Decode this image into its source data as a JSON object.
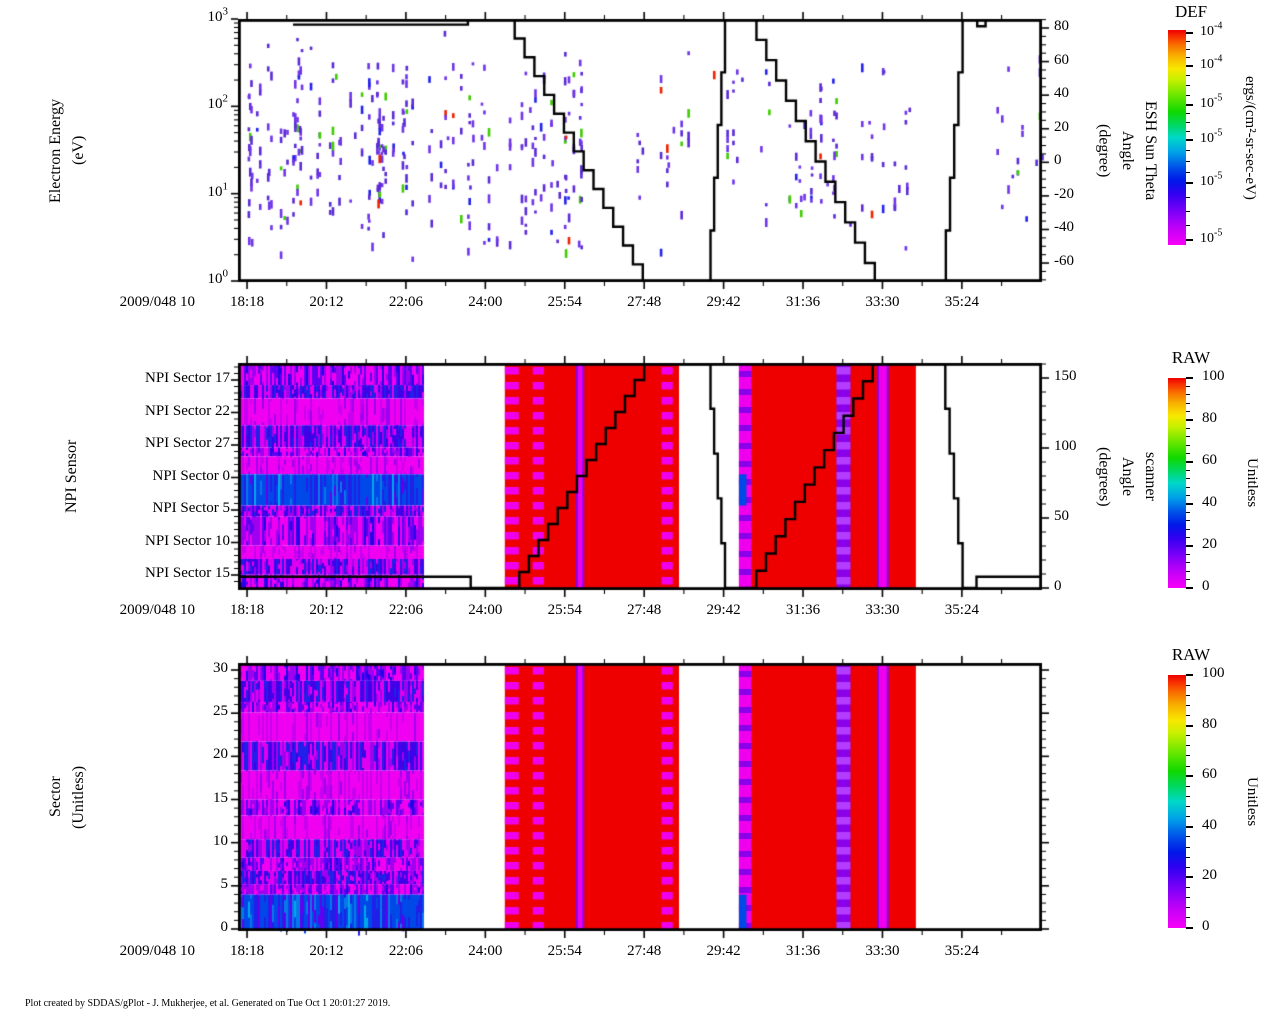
{
  "meta": {
    "footer": "Plot created by SDDAS/gPlot - J. Mukherjee, et al.  Generated on Tue Oct 1 20:01:27 2019."
  },
  "x_axis": {
    "date_label": "2009/048 10",
    "tick_labels": [
      "18:18",
      "20:12",
      "22:06",
      "24:00",
      "25:54",
      "27:48",
      "29:42",
      "31:36",
      "33:30",
      "35:24"
    ],
    "tick_minutes": [
      1098,
      1212,
      1326,
      1440,
      1554,
      1668,
      1782,
      1896,
      2010,
      2124
    ],
    "minor_extra_minutes": [
      2181
    ],
    "range_minutes": [
      1085,
      2239
    ]
  },
  "palette": {
    "scatter_purple": "#5B2BD6",
    "scatter_purple2": "#6F35E8",
    "scatter_blue": "#2222EE",
    "scatter_green": "#3FCC00",
    "scatter_red": "#EE2200",
    "heat_magenta": "#F000F0",
    "heat_violet": "#A000F0",
    "heat_deep_violet": "#6000F0",
    "heat_blue": "#2020E8",
    "heat_bright_blue": "#0048E8",
    "heat_cyan": "#00A8E8",
    "heat_red": "#EE0000",
    "stripe_magenta": "#EE00EE",
    "stripe_violet": "#8A00E8",
    "stripe_violet_dash": "#B43CFF",
    "line_black": "#000000"
  },
  "chart_data": [
    {
      "id": "electron-energy",
      "type": "scatter+line",
      "ylabel_lines": [
        "Electron Energy",
        "(eV)"
      ],
      "y_scale": "log",
      "y_range": [
        1,
        1000
      ],
      "y_ticks": [
        {
          "base": "10",
          "exp": "3",
          "log": 3
        },
        {
          "base": "10",
          "exp": "2",
          "log": 2
        },
        {
          "base": "10",
          "exp": "1",
          "log": 1
        },
        {
          "base": "10",
          "exp": "0",
          "log": 0
        }
      ],
      "right_axis": {
        "label_lines": [
          "ESH Sun Theta",
          "Angle",
          "(degree)"
        ],
        "ticks": [
          80,
          60,
          40,
          20,
          0,
          -20,
          -40,
          -60
        ],
        "range": [
          -72,
          86
        ],
        "major_step": 20,
        "minor_step": 5
      },
      "line": {
        "name": "ESH Sun Theta Angle",
        "segments": [
          [
            1164,
            82,
            1415,
            82,
            0
          ],
          [
            1415,
            85,
            1468,
            85,
            0
          ],
          [
            1468,
            85,
            1666,
            -72,
            14
          ],
          [
            1666,
            -72,
            1758,
            -72,
            0
          ],
          [
            1758,
            -72,
            1784,
            85,
            5
          ],
          [
            1784,
            85,
            1815,
            85,
            0
          ],
          [
            1815,
            85,
            1999,
            -72,
            13
          ],
          [
            1999,
            -72,
            2095,
            -72,
            0
          ],
          [
            2095,
            -72,
            2125,
            85,
            5
          ],
          [
            2125,
            85,
            2146,
            85,
            0
          ],
          [
            2146,
            81,
            2158,
            81,
            0
          ],
          [
            2158,
            85,
            2239,
            85,
            0
          ]
        ]
      },
      "scatter": {
        "clusters": [
          {
            "t": [
              1098,
              1580
            ],
            "cols": 95,
            "max": 6
          },
          {
            "t": [
              1650,
              2055
            ],
            "cols": 42,
            "max": 5
          },
          {
            "t": [
              2150,
              2239
            ],
            "cols": 10,
            "max": 3
          }
        ],
        "weights": {
          "purple": 0.84,
          "blue": 0.07,
          "green": 0.07,
          "red": 0.02
        }
      },
      "colorbar": {
        "title": "DEF",
        "unit": "ergs/(cm²-sr-sec-eV)",
        "tick_labels": [
          {
            "base": "10",
            "exp": "-4"
          },
          {
            "base": "10",
            "exp": "-4"
          },
          {
            "base": "10",
            "exp": "-5"
          },
          {
            "base": "10",
            "exp": "-5"
          },
          {
            "base": "10",
            "exp": "-5"
          },
          {
            "base": "10",
            "exp": "-5"
          }
        ],
        "tick_pos": [
          0.014,
          0.167,
          0.349,
          0.512,
          0.712,
          0.977
        ]
      }
    },
    {
      "id": "npi-sensor",
      "type": "heatmap+line",
      "ylabel_lines": [
        "NPI Sensor"
      ],
      "y_tick_labels": [
        "NPI Sector 17",
        "NPI Sector 22",
        "NPI Sector 27",
        "NPI Sector 0",
        "NPI Sector 5",
        "NPI Sector 10",
        "NPI Sector 15"
      ],
      "right_axis": {
        "label_lines": [
          "scanner",
          "Angle",
          "(degrees)"
        ],
        "ticks": [
          150,
          100,
          50,
          0
        ],
        "range": [
          -1.4,
          160.7
        ],
        "major_step": 50,
        "minor_step": 10
      },
      "line": {
        "name": "scanner Angle",
        "segments": [
          [
            1085,
            8,
            1419,
            8,
            0
          ],
          [
            1419,
            0,
            1475,
            0,
            0
          ],
          [
            1475,
            0,
            1668,
            160,
            14
          ],
          [
            1668,
            160,
            1758,
            160,
            0
          ],
          [
            1758,
            160,
            1784,
            0,
            5
          ],
          [
            1784,
            0,
            1815,
            0,
            0
          ],
          [
            1815,
            0,
            1996,
            160,
            13
          ],
          [
            1996,
            160,
            2094,
            160,
            0
          ],
          [
            2094,
            160,
            2125,
            0,
            5
          ],
          [
            2125,
            0,
            2145,
            0,
            0
          ],
          [
            2145,
            8,
            2239,
            8,
            0
          ]
        ]
      },
      "blocks": [
        {
          "t": [
            1085,
            1350
          ],
          "kind": "noise"
        },
        {
          "t": [
            1468,
            1718
          ],
          "kind": "red",
          "stripes": [
            {
              "t": [
                1468,
                1488
              ],
              "kind": "dashed"
            },
            {
              "t": [
                1508,
                1524
              ],
              "kind": "dashed"
            },
            {
              "t": [
                1570,
                1582
              ],
              "kind": "solid"
            },
            {
              "t": [
                1693,
                1709
              ],
              "kind": "dashed"
            }
          ]
        },
        {
          "t": [
            1804,
            2058
          ],
          "kind": "red",
          "stripes": [
            {
              "t": [
                1804,
                1822
              ],
              "kind": "solid-blue"
            },
            {
              "t": [
                1944,
                1964
              ],
              "kind": "dashed-violet"
            },
            {
              "t": [
                2002,
                2019
              ],
              "kind": "solid"
            }
          ]
        }
      ],
      "bands": [
        [
          0,
          0.09,
          1
        ],
        [
          0.09,
          0.15,
          2
        ],
        [
          0.15,
          0.27,
          0
        ],
        [
          0.27,
          0.37,
          2
        ],
        [
          0.37,
          0.41,
          1
        ],
        [
          0.41,
          0.49,
          0
        ],
        [
          0.49,
          0.63,
          3
        ],
        [
          0.63,
          0.68,
          2
        ],
        [
          0.68,
          0.81,
          1
        ],
        [
          0.81,
          0.87,
          0
        ],
        [
          0.87,
          0.94,
          2
        ],
        [
          0.94,
          1,
          1
        ]
      ],
      "colorbar": {
        "title": "RAW",
        "unit": "Unitless",
        "ticks": [
          100,
          80,
          60,
          40,
          20,
          0
        ],
        "minor_step": 4
      }
    },
    {
      "id": "sector",
      "type": "heatmap",
      "ylabel_lines": [
        "Sector",
        "(Unitless)"
      ],
      "y_ticks": [
        30,
        25,
        20,
        15,
        10,
        5,
        0
      ],
      "y_range": [
        -0.25,
        30.8
      ],
      "blocks": [
        {
          "t": [
            1085,
            1350
          ],
          "kind": "noise"
        },
        {
          "t": [
            1468,
            1718
          ],
          "kind": "red",
          "stripes": [
            {
              "t": [
                1468,
                1488
              ],
              "kind": "dashed"
            },
            {
              "t": [
                1508,
                1524
              ],
              "kind": "dashed"
            },
            {
              "t": [
                1570,
                1582
              ],
              "kind": "solid"
            },
            {
              "t": [
                1693,
                1709
              ],
              "kind": "dashed"
            }
          ]
        },
        {
          "t": [
            1804,
            2058
          ],
          "kind": "red",
          "stripes": [
            {
              "t": [
                1804,
                1822
              ],
              "kind": "solid-blue"
            },
            {
              "t": [
                1944,
                1964
              ],
              "kind": "dashed-violet"
            },
            {
              "t": [
                2002,
                2019
              ],
              "kind": "solid"
            }
          ]
        }
      ],
      "bands": [
        [
          0,
          0.06,
          1
        ],
        [
          0.06,
          0.14,
          2
        ],
        [
          0.14,
          0.18,
          1
        ],
        [
          0.18,
          0.29,
          0
        ],
        [
          0.29,
          0.4,
          2
        ],
        [
          0.4,
          0.51,
          0
        ],
        [
          0.51,
          0.57,
          1
        ],
        [
          0.57,
          0.66,
          0
        ],
        [
          0.66,
          0.73,
          2
        ],
        [
          0.73,
          0.78,
          1
        ],
        [
          0.78,
          0.83,
          2
        ],
        [
          0.83,
          0.87,
          1
        ],
        [
          0.87,
          1,
          3
        ]
      ],
      "colorbar": {
        "title": "RAW",
        "unit": "Unitless",
        "ticks": [
          100,
          80,
          60,
          40,
          20,
          0
        ],
        "minor_step": 4
      }
    }
  ]
}
